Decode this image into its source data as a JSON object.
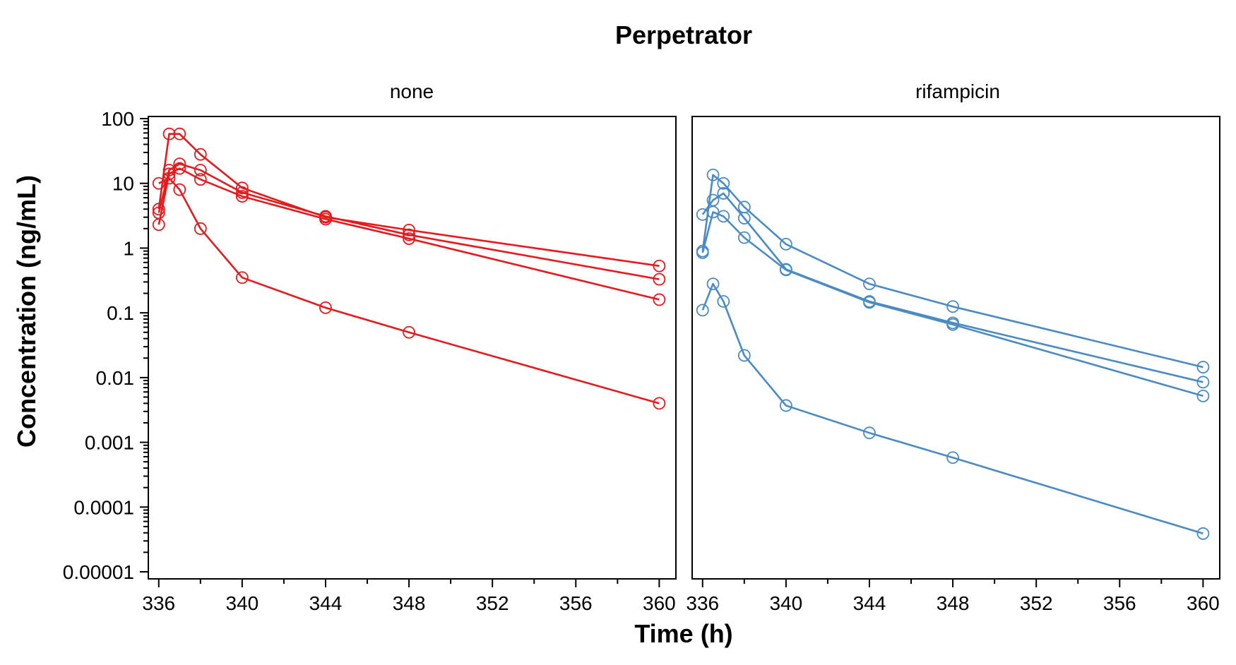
{
  "chart_data": {
    "type": "line",
    "title": "Perpetrator",
    "xlabel": "Time (h)",
    "ylabel": "Concentration (ng/mL)",
    "yscale": "log",
    "ylim": [
      1e-05,
      100
    ],
    "xlim": [
      335.5,
      360.8
    ],
    "x_ticks": [
      336,
      340,
      344,
      348,
      352,
      356,
      360
    ],
    "x_tick_labels": [
      "336",
      "340",
      "344",
      "348",
      "352",
      "356",
      "360"
    ],
    "y_ticks": [
      1e-05,
      0.0001,
      0.001,
      0.01,
      0.1,
      1,
      10,
      100
    ],
    "y_tick_labels": [
      "0.00001",
      "0.0001",
      "0.001",
      "0.01",
      "0.1",
      "1",
      "10",
      "100"
    ],
    "grid": false,
    "marker": "open-circle",
    "panels": [
      {
        "label": "none",
        "color": "#E41A1C",
        "series": [
          {
            "x": [
              336,
              336.5,
              337,
              338,
              340,
              344,
              348,
              360
            ],
            "y": [
              4.0,
              58,
              58,
              28,
              8.5,
              3.0,
              1.9,
              0.53
            ]
          },
          {
            "x": [
              336,
              336.5,
              337,
              338,
              340,
              344,
              348,
              360
            ],
            "y": [
              3.5,
              16,
              20,
              16,
              7.2,
              3.1,
              1.6,
              0.33
            ]
          },
          {
            "x": [
              336,
              336.5,
              337,
              338,
              340,
              344,
              348,
              360
            ],
            "y": [
              2.3,
              14,
              17,
              11.5,
              6.3,
              2.8,
              1.4,
              0.16
            ]
          },
          {
            "x": [
              336,
              336.5,
              337,
              338,
              340,
              344,
              348,
              360
            ],
            "y": [
              10,
              12,
              8,
              2.0,
              0.35,
              0.12,
              0.05,
              0.004
            ]
          }
        ]
      },
      {
        "label": "rifampicin",
        "color": "#4A8BC4",
        "series": [
          {
            "x": [
              336,
              336.5,
              337,
              338,
              340,
              344,
              348,
              360
            ],
            "y": [
              0.9,
              13.5,
              10,
              4.3,
              1.15,
              0.28,
              0.125,
              0.0145
            ]
          },
          {
            "x": [
              336,
              336.5,
              337,
              338,
              340,
              344,
              348,
              360
            ],
            "y": [
              3.3,
              5.5,
              7,
              2.9,
              0.47,
              0.15,
              0.07,
              0.0085
            ]
          },
          {
            "x": [
              336,
              336.5,
              337,
              338,
              340,
              344,
              348,
              360
            ],
            "y": [
              0.85,
              3.6,
              3.1,
              1.45,
              0.46,
              0.145,
              0.066,
              0.0052
            ]
          },
          {
            "x": [
              336,
              336.5,
              337,
              338,
              340,
              344,
              348,
              360
            ],
            "y": [
              0.11,
              0.28,
              0.15,
              0.022,
              0.0037,
              0.0014,
              0.00058,
              3.9e-05
            ]
          }
        ]
      }
    ]
  }
}
